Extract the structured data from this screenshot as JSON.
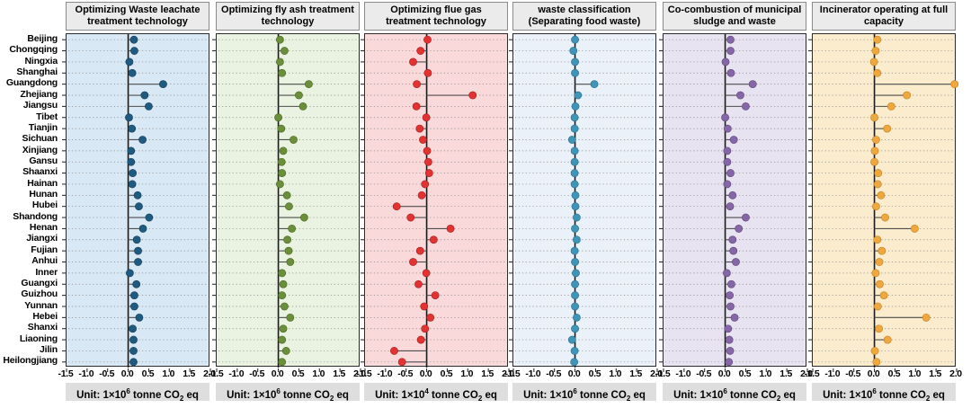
{
  "chart_data": {
    "type": "lollipop",
    "orientation": "horizontal",
    "xlim": [
      -1.5,
      2.0
    ],
    "x_ticks": [
      "-1.5",
      "-1.0",
      "-0.5",
      "0.0",
      "0.5",
      "1.0",
      "1.5",
      "2.0"
    ],
    "grid": "dotted-horizontal",
    "categories": [
      "Beijing",
      "Chongqing",
      "Ningxia",
      "Shanghai",
      "Guangdong",
      "Zhejiang",
      "Jiangsu",
      "Tibet",
      "Tianjin",
      "Sichuan",
      "Xinjiang",
      "Gansu",
      "Shaanxi",
      "Hainan",
      "Hunan",
      "Hubei",
      "Shandong",
      "Henan",
      "Jiangxi",
      "Fujian",
      "Anhui",
      "Inner",
      "Guangxi",
      "Guizhou",
      "Yunnan",
      "Hebei",
      "Shanxi",
      "Liaoning",
      "Jilin",
      "Heilongjiang"
    ],
    "panels": [
      {
        "title": "Optimizing Waste leachate treatment technology",
        "unit": {
          "pre": "Unit: 1×10",
          "exp": "6",
          "mid": " tonne CO",
          "sub": "2",
          "post": " eq"
        },
        "bg": "#d9e8f5",
        "dot_color": "#1f5a80",
        "dot_stroke": "#133d59",
        "values": [
          0.14,
          0.15,
          0.03,
          0.1,
          0.85,
          0.4,
          0.5,
          0.02,
          0.09,
          0.35,
          0.07,
          0.07,
          0.11,
          0.1,
          0.23,
          0.26,
          0.51,
          0.36,
          0.21,
          0.24,
          0.24,
          0.04,
          0.2,
          0.15,
          0.15,
          0.27,
          0.11,
          0.13,
          0.13,
          0.13
        ]
      },
      {
        "title": "Optimizing fly ash treatment technology",
        "unit": {
          "pre": "Unit: 1×10",
          "exp": "6",
          "mid": " tonne CO",
          "sub": "2",
          "post": " eq"
        },
        "bg": "#eaf3e2",
        "dot_color": "#6b8e3b",
        "dot_stroke": "#49661f",
        "values": [
          0.04,
          0.15,
          0.04,
          0.09,
          0.74,
          0.5,
          0.6,
          0.0,
          0.07,
          0.37,
          0.12,
          0.08,
          0.09,
          0.04,
          0.21,
          0.26,
          0.63,
          0.33,
          0.22,
          0.25,
          0.29,
          0.09,
          0.12,
          0.09,
          0.15,
          0.29,
          0.12,
          0.09,
          0.19,
          0.09
        ]
      },
      {
        "title": "Optimizing flue gas treatment technology",
        "unit": {
          "pre": "Unit: 1×10",
          "exp": "4",
          "mid": " tonne CO",
          "sub": "2",
          "post": " eq"
        },
        "bg": "#f9d9da",
        "dot_color": "#e23232",
        "dot_stroke": "#a31f1f",
        "values": [
          0.02,
          -0.15,
          -0.33,
          0.03,
          -0.24,
          1.12,
          -0.25,
          -0.01,
          -0.17,
          -0.09,
          0.01,
          0.04,
          0.06,
          -0.04,
          -0.12,
          -0.73,
          -0.39,
          0.58,
          0.17,
          -0.16,
          -0.33,
          -0.01,
          -0.2,
          0.21,
          -0.06,
          0.09,
          -0.04,
          -0.14,
          -0.79,
          -0.6
        ]
      },
      {
        "title": "waste classification (Separating food waste)",
        "unit": {
          "pre": "Unit: 1×10",
          "exp": "6",
          "mid": " tonne CO",
          "sub": "2",
          "post": " eq"
        },
        "bg": "#eaf1f8",
        "dot_color": "#3f94b8",
        "dot_stroke": "#256d8c",
        "values": [
          0.0,
          -0.04,
          0.0,
          0.0,
          0.47,
          0.07,
          0.01,
          -0.01,
          -0.01,
          -0.07,
          -0.01,
          -0.01,
          -0.01,
          -0.01,
          0.01,
          0.01,
          0.04,
          0.0,
          0.04,
          -0.01,
          0.0,
          0.02,
          0.0,
          0.0,
          0.0,
          0.04,
          0.0,
          -0.07,
          -0.01,
          -0.02
        ]
      },
      {
        "title": "Co-combustion of municipal sludge and waste",
        "unit": {
          "pre": "Unit: 1×10",
          "exp": "6",
          "mid": " tonne CO",
          "sub": "2",
          "post": " eq"
        },
        "bg": "#e8e3f0",
        "dot_color": "#8566a6",
        "dot_stroke": "#5d4579",
        "values": [
          0.13,
          0.13,
          0.01,
          0.14,
          0.67,
          0.37,
          0.5,
          0.0,
          0.06,
          0.21,
          0.05,
          0.05,
          0.13,
          0.05,
          0.18,
          0.12,
          0.5,
          0.33,
          0.18,
          0.2,
          0.26,
          0.04,
          0.15,
          0.11,
          0.13,
          0.23,
          0.07,
          0.1,
          0.12,
          0.09
        ]
      },
      {
        "title": "Incinerator operating at full capacity",
        "unit": {
          "pre": "Unit: 1×10",
          "exp": "6",
          "mid": " tonne CO",
          "sub": "2",
          "post": " eq"
        },
        "bg": "#faeccd",
        "dot_color": "#f0a73e",
        "dot_stroke": "#c07f1f",
        "values": [
          0.07,
          0.03,
          -0.01,
          0.07,
          1.95,
          0.79,
          0.41,
          0.0,
          0.31,
          0.04,
          0.01,
          0.0,
          0.09,
          0.08,
          0.16,
          0.04,
          0.26,
          0.98,
          0.07,
          0.18,
          0.12,
          0.03,
          0.13,
          0.23,
          0.08,
          1.26,
          0.11,
          0.32,
          0.01,
          0.05
        ]
      }
    ],
    "style": {
      "stem_color": "#4d4d4d",
      "zero_line_color": "#1a1a1a",
      "grid_color": "#8c8c8c"
    }
  }
}
